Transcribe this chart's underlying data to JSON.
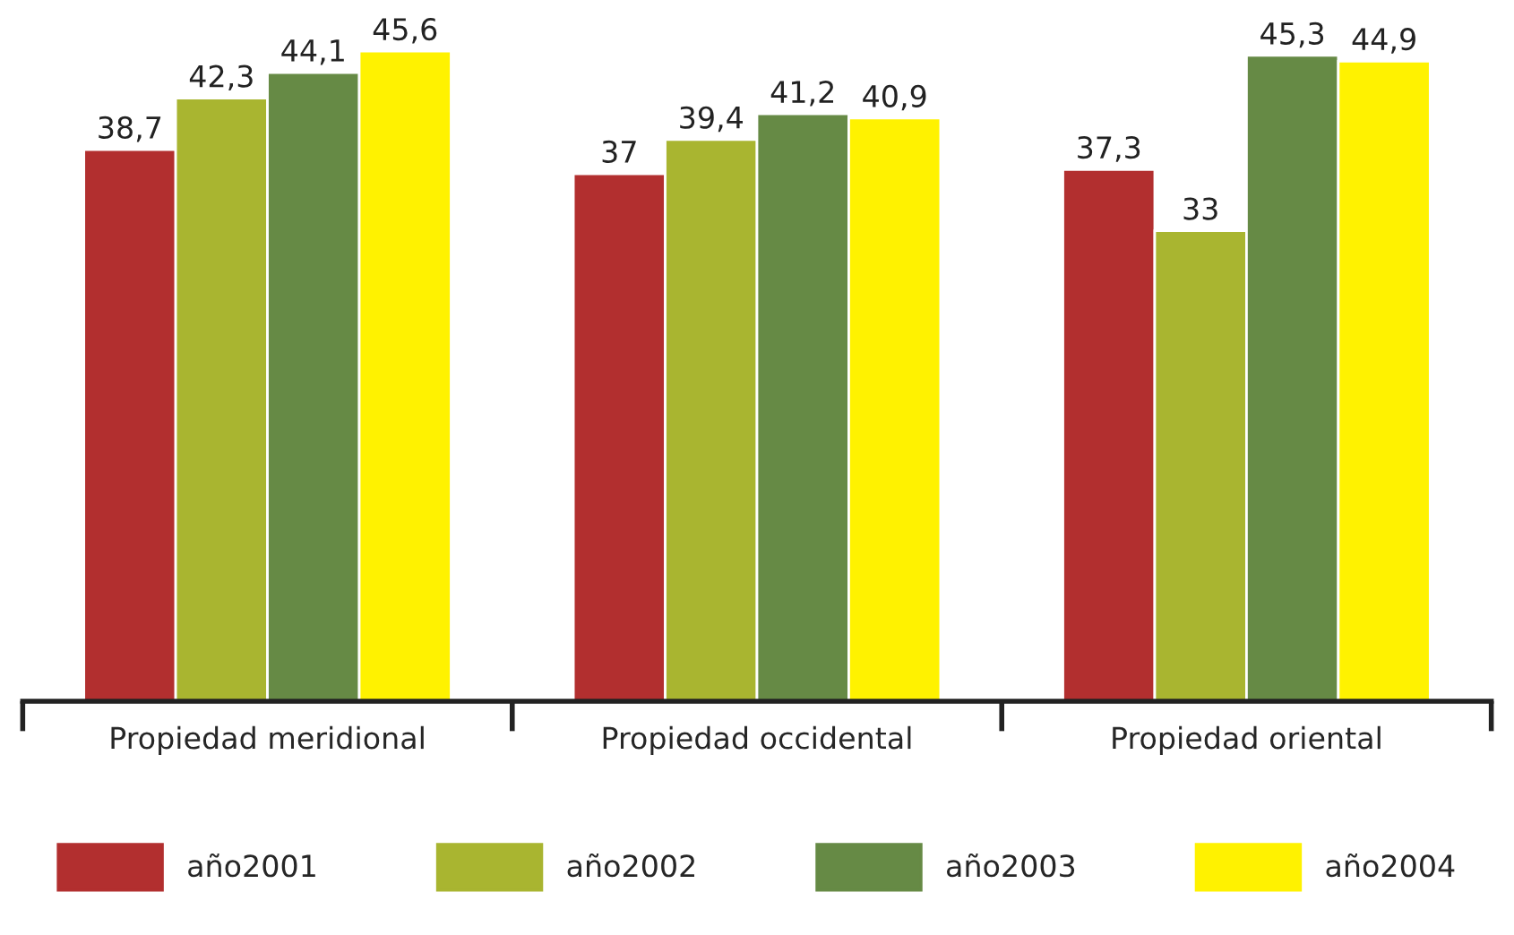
{
  "chart_data": {
    "type": "bar",
    "categories": [
      "Propiedad meridional",
      "Propiedad occidental",
      "Propiedad oriental"
    ],
    "tick_labels": "x",
    "grid": false,
    "legend": "bottom",
    "series": [
      {
        "name": "año2001",
        "color": "#b22f2f",
        "values": [
          38.7,
          37,
          37.3
        ],
        "value_labels": [
          "38,7",
          "37",
          "37,3"
        ]
      },
      {
        "name": "año2002",
        "color": "#a9b530",
        "values": [
          42.3,
          39.4,
          33
        ],
        "value_labels": [
          "42,3",
          "39,4",
          "33"
        ]
      },
      {
        "name": "año2003",
        "color": "#668a45",
        "values": [
          44.1,
          41.2,
          45.3
        ],
        "value_labels": [
          "44,1",
          "41,2",
          "45,3"
        ]
      },
      {
        "name": "año2004",
        "color": "#fff200",
        "values": [
          45.6,
          40.9,
          44.9
        ],
        "value_labels": [
          "45,6",
          "40,9",
          "44,9"
        ]
      }
    ]
  }
}
